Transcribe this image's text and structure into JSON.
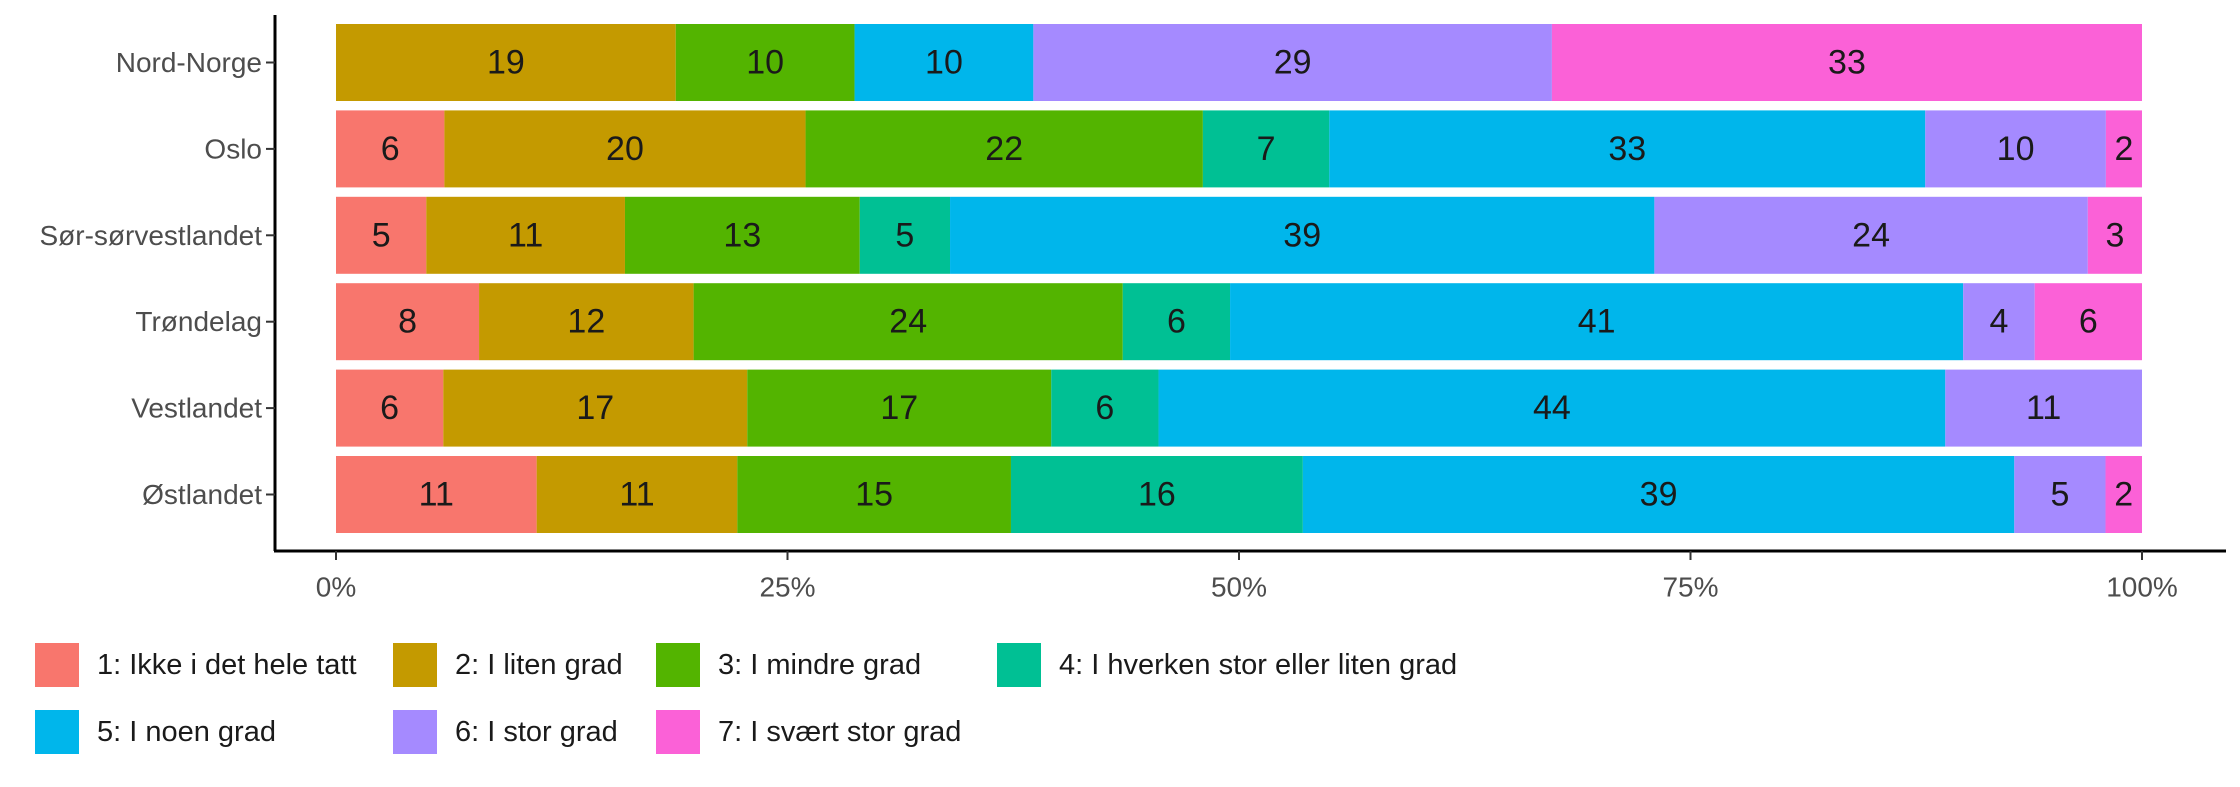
{
  "chart_data": {
    "type": "bar",
    "orientation": "horizontal",
    "stacked": true,
    "normalized": true,
    "categories": [
      "Nord-Norge",
      "Oslo",
      "Sør-sørvestlandet",
      "Trøndelag",
      "Vestlandet",
      "Østlandet"
    ],
    "xlim": [
      0,
      100
    ],
    "xticks": [
      "0%",
      "25%",
      "50%",
      "75%",
      "100%"
    ],
    "grid": false,
    "legend_position": "bottom",
    "series": [
      {
        "name": "1: Ikke i det hele tatt",
        "color": "#F8766D",
        "values": [
          0,
          6,
          5,
          8,
          6,
          11
        ]
      },
      {
        "name": "2: I liten grad",
        "color": "#C49A00",
        "values": [
          19,
          20,
          11,
          12,
          17,
          11
        ]
      },
      {
        "name": "3: I mindre grad",
        "color": "#53B400",
        "values": [
          10,
          22,
          13,
          24,
          17,
          15
        ]
      },
      {
        "name": "4: I hverken stor eller liten grad",
        "color": "#00C094",
        "values": [
          0,
          7,
          5,
          6,
          6,
          16
        ]
      },
      {
        "name": "5: I noen grad",
        "color": "#00B6EB",
        "values": [
          10,
          33,
          39,
          41,
          44,
          39
        ]
      },
      {
        "name": "6: I stor grad",
        "color": "#A58AFF",
        "values": [
          29,
          10,
          24,
          4,
          11,
          5
        ]
      },
      {
        "name": "7: I svært stor grad",
        "color": "#FB61D7",
        "values": [
          33,
          2,
          3,
          6,
          0,
          2
        ]
      }
    ]
  }
}
